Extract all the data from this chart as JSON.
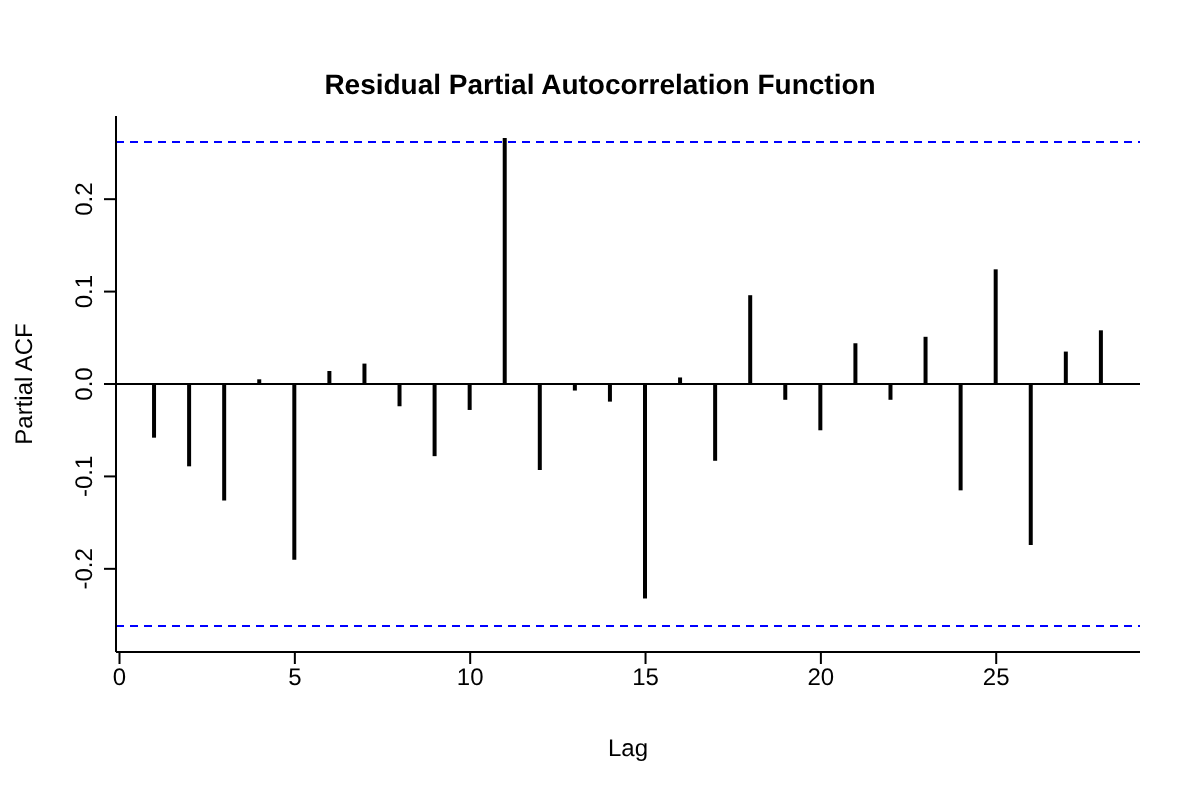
{
  "chart_data": {
    "type": "bar",
    "title": "Residual Partial Autocorrelation Function",
    "xlabel": "Lag",
    "ylabel": "Partial ACF",
    "x": [
      1,
      2,
      3,
      4,
      5,
      6,
      7,
      8,
      9,
      10,
      11,
      12,
      13,
      14,
      15,
      16,
      17,
      18,
      19,
      20,
      21,
      22,
      23,
      24,
      25,
      26,
      27,
      28
    ],
    "values": [
      -0.057,
      -0.088,
      -0.125,
      0.004,
      -0.189,
      0.013,
      0.021,
      -0.023,
      -0.077,
      -0.027,
      0.265,
      -0.092,
      -0.006,
      -0.018,
      -0.231,
      0.006,
      -0.082,
      0.095,
      -0.016,
      -0.049,
      0.043,
      -0.016,
      0.05,
      -0.114,
      0.123,
      -0.173,
      0.034,
      0.057
    ],
    "color": "#000000",
    "xlim": [
      -0.1,
      29.1
    ],
    "xticks": [
      0,
      5,
      10,
      15,
      20,
      25
    ],
    "ylim": [
      -0.29,
      0.29
    ],
    "yticks": [
      {
        "value": -0.2,
        "label": "-0.2"
      },
      {
        "value": -0.1,
        "label": "-0.1"
      },
      {
        "value": 0,
        "label": "0.0"
      },
      {
        "value": 0.1,
        "label": "0.1"
      },
      {
        "value": 0.2,
        "label": "0.2"
      }
    ],
    "ref_lines": [
      {
        "axis": "y",
        "value": 0,
        "label": null,
        "color": "#000000",
        "line_style": "solid"
      },
      {
        "axis": "y",
        "value": 0.262,
        "label": null,
        "color": "#0000ff",
        "line_style": "dashed"
      },
      {
        "axis": "y",
        "value": -0.262,
        "label": null,
        "color": "#0000ff",
        "line_style": "dashed"
      }
    ],
    "grid": false,
    "legend": false
  }
}
